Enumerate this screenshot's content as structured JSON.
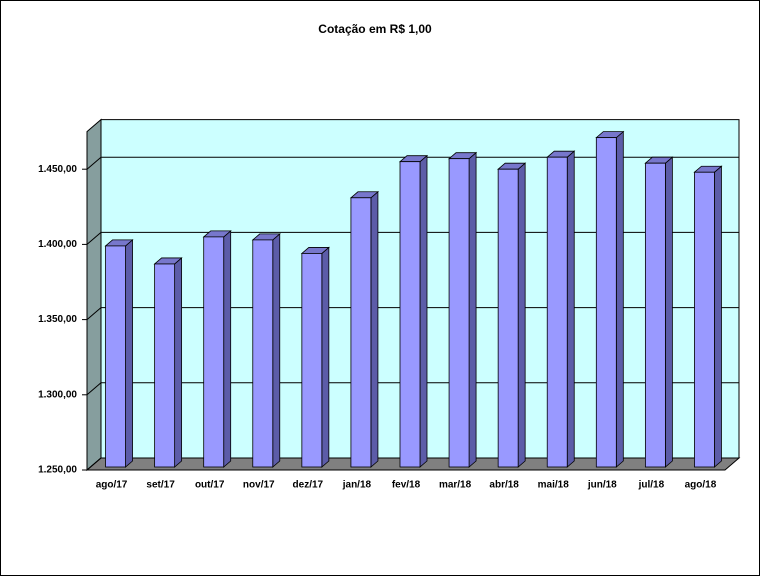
{
  "chart_data": {
    "type": "bar3d",
    "title": "Cotação em R$ 1,00",
    "categories": [
      "ago/17",
      "set/17",
      "out/17",
      "nov/17",
      "dez/17",
      "jan/18",
      "fev/18",
      "mar/18",
      "abr/18",
      "mai/18",
      "jun/18",
      "jul/18",
      "ago/18"
    ],
    "values": [
      1397,
      1385,
      1403,
      1401,
      1392,
      1429,
      1453,
      1455,
      1448,
      1456,
      1469,
      1452,
      1446
    ],
    "color": "#9999ff",
    "ylim": [
      1250,
      1475
    ],
    "yticks": [
      {
        "value": 1250,
        "label": "1.250,00"
      },
      {
        "value": 1300,
        "label": "1.300,00"
      },
      {
        "value": 1350,
        "label": "1.350,00"
      },
      {
        "value": 1400,
        "label": "1.400,00"
      },
      {
        "value": 1450,
        "label": "1.450,00"
      }
    ],
    "grid": true
  }
}
